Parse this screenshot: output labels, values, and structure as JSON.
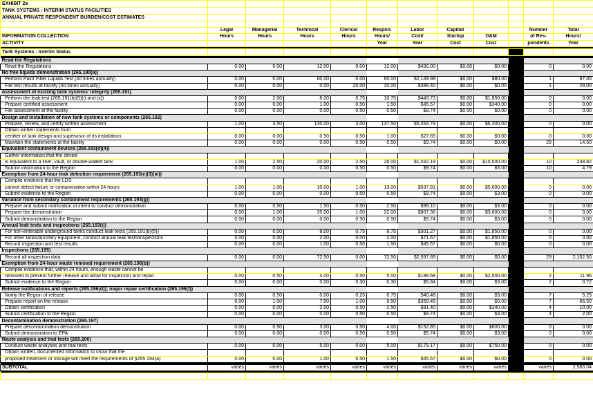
{
  "titles": [
    "EXHIBIT 2a",
    "TANK SYSTEMS - INTERIM STATUS FACILITIES",
    "ANNUAL PRIVATE RESPONDENT BURDEN/COST ESTIMATES"
  ],
  "header": {
    "activity": [
      "",
      "INFORMATION COLLECTION",
      "ACTIVITY"
    ],
    "columns": [
      [
        "Legal",
        "Hours",
        ""
      ],
      [
        "Managerial",
        "Hours",
        ""
      ],
      [
        "Technical",
        "Hours",
        ""
      ],
      [
        "Clerical",
        "Hours",
        ""
      ],
      [
        "Respon.",
        "Hours/",
        "Year"
      ],
      [
        "Labor",
        "Cost/",
        "Year"
      ],
      [
        "Capital/",
        "Startup",
        "Cost"
      ],
      [
        "",
        "O&M",
        "Cost"
      ],
      [
        "",
        "",
        ""
      ],
      [
        "Number",
        "of Res-",
        "pondents"
      ],
      [
        "Total",
        "Hours/",
        "Year"
      ]
    ]
  },
  "group_title": "Tank Systems - Interim Status",
  "rows": [
    {
      "t": "s",
      "a": "Read the Regulations"
    },
    {
      "t": "d",
      "a": "Read the Regulations",
      "v": [
        "0.00",
        "0.00",
        "12.00",
        "0.00",
        "12.00",
        "$430.00",
        "$0.00",
        "$0.00",
        "0",
        "0.00"
      ]
    },
    {
      "t": "s",
      "a": "No free liquids demonstration (265.190(a))"
    },
    {
      "t": "d",
      "a": "Perform Paint Filter Liquids Test (40 times annually)",
      "v": [
        "0.00",
        "0.00",
        "60.00",
        "0.00",
        "60.00",
        "$2,149.98",
        "$0.00",
        "$80.00",
        "1",
        "87.00"
      ]
    },
    {
      "t": "d",
      "a": "File test results at facility (40 times annually)",
      "v": [
        "0.00",
        "0.00",
        "0.00",
        "20.00",
        "20.00",
        "$389.40",
        "$0.00",
        "$0.00",
        "1",
        "29.00"
      ]
    },
    {
      "t": "s",
      "a": "Assessment of existing tank systems' integrity (265.191)"
    },
    {
      "t": "d",
      "a": "Perform the leak test (265.191(b)(5)(i) and (ii))",
      "v": [
        "0.00",
        "2.00",
        "8.00",
        "0.75",
        "10.75",
        "$443.73",
        "$0.00",
        "$1,850.00",
        "0",
        "0.00"
      ]
    },
    {
      "t": "d",
      "a": "Prepare certified assessment",
      "v": [
        "0.00",
        "0.00",
        "1.00",
        "0.50",
        "1.50",
        "$45.57",
        "$0.00",
        "$340.00",
        "0",
        "0.00"
      ]
    },
    {
      "t": "d",
      "a": "File assessment at the facility",
      "v": [
        "0.00",
        "0.00",
        "0.00",
        "0.50",
        "0.50",
        "$9.74",
        "$0.00",
        "$0.00",
        "0",
        "0.00"
      ]
    },
    {
      "t": "s",
      "a": "Design and installation of new tank systems or components (265.192)"
    },
    {
      "t": "d",
      "a": "Prepare, review, and certify written assessment",
      "v": [
        "1.00",
        "3.50",
        "130.00",
        "3.00",
        "137.50",
        "$5,054.79",
        "$0.00",
        "$6,300.00",
        "0",
        "0.00"
      ]
    },
    {
      "t": "c",
      "a": "Obtain written statements from"
    },
    {
      "t": "d",
      "a": "certifier of tank design and supervisor of its installation",
      "v": [
        "0.00",
        "0.00",
        "0.50",
        "0.50",
        "1.00",
        "$27.65",
        "$0.00",
        "$0.00",
        "0",
        "0.00"
      ]
    },
    {
      "t": "d",
      "a": "Maintain the statements at the facility",
      "v": [
        "0.00",
        "0.00",
        "0.00",
        "0.50",
        "0.50",
        "$9.74",
        "$0.00",
        "$0.00",
        "29",
        "14.50"
      ]
    },
    {
      "t": "s",
      "a": "Equivalent containment devices (265.193(d)(4))"
    },
    {
      "t": "c",
      "a": "Gather information that the device"
    },
    {
      "t": "d",
      "a": "is equivalent to a liner, vault, or double-walled tank",
      "v": [
        "1.00",
        "2.50",
        "20.00",
        "2.50",
        "26.00",
        "$1,032.19",
        "$0.00",
        "$10,000.00",
        "10",
        "248.82"
      ]
    },
    {
      "t": "d",
      "a": "Submit information to the Region",
      "v": [
        "0.00",
        "0.00",
        "0.00",
        "0.50",
        "0.50",
        "$9.74",
        "$0.00",
        "$3.00",
        "10",
        "4.79"
      ]
    },
    {
      "t": "s",
      "a": "Exemption from 24-hour leak detection requirement (265.193(e)(3)(iii))"
    },
    {
      "t": "c",
      "a": "Compile evidence that the LDS"
    },
    {
      "t": "d",
      "a": "cannot detect failure or contamination within 24 hours",
      "v": [
        "1.00",
        "1.00",
        "10.00",
        "1.00",
        "13.00",
        "$537.81",
        "$0.00",
        "$5,000.00",
        "0",
        "0.00"
      ]
    },
    {
      "t": "d",
      "a": "Submit evidence to the Region",
      "v": [
        "0.00",
        "0.00",
        "0.00",
        "0.50",
        "0.50",
        "$9.74",
        "$0.00",
        "$3.00",
        "0",
        "0.00"
      ]
    },
    {
      "t": "s",
      "a": "Variance from secondary containment requirements (265.193(g))"
    },
    {
      "t": "d",
      "a": "Prepare and submit notification of intent to conduct demonstration",
      "v": [
        "0.00",
        "0.50",
        "1.50",
        "0.50",
        "2.50",
        "$99.10",
        "$0.00",
        "$3.00",
        "0",
        "0.00"
      ]
    },
    {
      "t": "d",
      "a": "Prepare the demonstration",
      "v": [
        "0.00",
        "1.00",
        "20.00",
        "1.00",
        "22.00",
        "$807.36",
        "$0.00",
        "$3,000.00",
        "0",
        "0.00"
      ]
    },
    {
      "t": "d",
      "a": "Submit demonstration to the Region",
      "v": [
        "0.00",
        "0.00",
        "0.00",
        "0.50",
        "0.50",
        "$9.74",
        "$0.00",
        "$3.00",
        "0",
        "0.00"
      ]
    },
    {
      "t": "s",
      "a": "Annual leak tests and inspections (265.193(i))"
    },
    {
      "t": "d",
      "a": "For non-enterable underground tanks conduct leak tests (265.191(b)(5))",
      "v": [
        "0.00",
        "0.00",
        "8.00",
        "0.75",
        "8.75",
        "$301.27",
        "$0.00",
        "$1,850.00",
        "0",
        "0.00"
      ]
    },
    {
      "t": "d",
      "a": "For other tanks/ancillary equipment, conduct annual leak tests/inspections",
      "v": [
        "0.00",
        "0.00",
        "2.00",
        "0.00",
        "2.00",
        "$71.67",
        "$0.00",
        "$1,850.00",
        "0",
        "0.00"
      ]
    },
    {
      "t": "d",
      "a": "Record inspection and test results",
      "v": [
        "0.00",
        "0.00",
        "1.00",
        "0.50",
        "1.50",
        "$45.57",
        "$0.00",
        "$0.00",
        "0",
        "0.00"
      ]
    },
    {
      "t": "s",
      "a": "Inspections (265.195)"
    },
    {
      "t": "d",
      "a": "Record all inspection data",
      "v": [
        "0.00",
        "0.00",
        "72.50",
        "0.00",
        "72.50",
        "$2,597.89",
        "$0.00",
        "$0.00",
        "29",
        "2,102.50"
      ]
    },
    {
      "t": "s",
      "a": "Exemption from 24-hour waste removal requirement (265.196(b))"
    },
    {
      "t": "c",
      "a": "Compile evidence that, within 24 hours, enough waste cannot be"
    },
    {
      "t": "d",
      "a": "removed to prevent further release and allow for inspection and repair",
      "v": [
        "0.00",
        "0.50",
        "4.00",
        "0.50",
        "5.00",
        "$188.68",
        "$0.00",
        "$2,000.00",
        "2",
        "11.96"
      ]
    },
    {
      "t": "d",
      "a": "Submit evidence to the Region",
      "v": [
        "0.00",
        "0.00",
        "0.00",
        "0.30",
        "0.30",
        "$5.84",
        "$0.00",
        "$3.00",
        "2",
        "0.72"
      ]
    },
    {
      "t": "s",
      "a": "Release notifications and reports (265.196(d)); major repair certification (265.196(f))"
    },
    {
      "t": "d",
      "a": "Notify the Region of release",
      "v": [
        "0.00",
        "0.50",
        "0.00",
        "0.25",
        "0.75",
        "$40.48",
        "$0.00",
        "$3.00",
        "7",
        "5.25"
      ]
    },
    {
      "t": "d",
      "a": "Prepare report on the release",
      "v": [
        "0.00",
        "1.00",
        "7.50",
        "1.00",
        "9.50",
        "$359.45",
        "$0.00",
        "$0.00",
        "7",
        "66.50"
      ]
    },
    {
      "t": "d",
      "a": "Obtain certification",
      "v": [
        "0.00",
        "0.00",
        "2.00",
        "0.50",
        "2.50",
        "$81.40",
        "$0.00",
        "$340.00",
        "4",
        "10.00"
      ]
    },
    {
      "t": "d",
      "a": "Submit certification to the Region",
      "v": [
        "0.00",
        "0.00",
        "0.00",
        "0.50",
        "0.50",
        "$9.74",
        "$0.00",
        "$3.00",
        "4",
        "2.00"
      ]
    },
    {
      "t": "s",
      "a": "Decontamination demonstration (265.197)"
    },
    {
      "t": "d",
      "a": "Prepare decontamination demonstration",
      "v": [
        "0.00",
        "0.50",
        "3.00",
        "0.50",
        "4.00",
        "$152.85",
        "$0.00",
        "$600.00",
        "0",
        "0.00"
      ]
    },
    {
      "t": "d",
      "a": "Submit demonstration to EPA",
      "v": [
        "0.00",
        "0.00",
        "0.00",
        "0.50",
        "0.50",
        "$9.74",
        "$0.00",
        "$3.00",
        "0",
        "0.00"
      ]
    },
    {
      "t": "s",
      "a": "Waste analysis and trial tests (265.200)"
    },
    {
      "t": "d",
      "a": "Conduct waste analyses and trial tests",
      "v": [
        "0.00",
        "0.00",
        "5.00",
        "0.00",
        "5.00",
        "$179.17",
        "$0.00",
        "$750.00",
        "0",
        "0.00"
      ]
    },
    {
      "t": "c",
      "a": "Obtain written, documented information to show that the"
    },
    {
      "t": "d",
      "a": "proposed treatment or storage will meet the requirements of §265.194(a)",
      "v": [
        "0.00",
        "0.00",
        "1.00",
        "0.50",
        "1.50",
        "$45.57",
        "$0.00",
        "$0.00",
        "0",
        "0.00"
      ]
    }
  ],
  "subtotal": {
    "label": "SUBTOTAL",
    "v": [
      "varies",
      "varies",
      "varies",
      "varies",
      "varies",
      "varies",
      "varies",
      "varies",
      "varies",
      "2,583.04"
    ]
  },
  "colors": {
    "grid": "#ffff00",
    "section_bg": "#e2e2e2",
    "separator": "#000000"
  }
}
